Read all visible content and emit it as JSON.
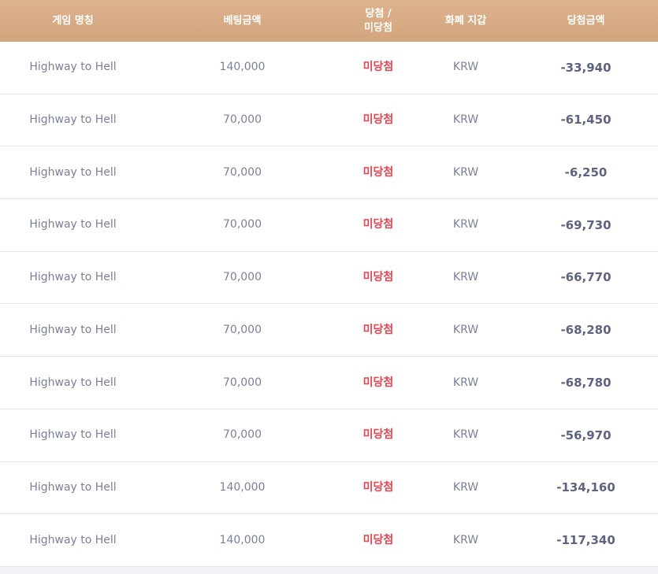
{
  "table": {
    "header": [
      "게임 명칭",
      "베팅금액",
      "당첨 /\n미당첨",
      "화폐 지갑",
      "당첨금액"
    ],
    "rows": [
      [
        "Highway to Hell",
        "140,000",
        "미당첨",
        "KRW",
        "-33,940"
      ],
      [
        "Highway to Hell",
        "70,000",
        "미당첨",
        "KRW",
        "-61,450"
      ],
      [
        "Highway to Hell",
        "70,000",
        "미당첨",
        "KRW",
        "-6,250"
      ],
      [
        "Highway to Hell",
        "70,000",
        "미당첨",
        "KRW",
        "-69,730"
      ],
      [
        "Highway to Hell",
        "70,000",
        "미당첨",
        "KRW",
        "-66,770"
      ],
      [
        "Highway to Hell",
        "70,000",
        "미당첨",
        "KRW",
        "-68,280"
      ],
      [
        "Highway to Hell",
        "70,000",
        "미당첨",
        "KRW",
        "-68,780"
      ],
      [
        "Highway to Hell",
        "70,000",
        "미당첨",
        "KRW",
        "-56,970"
      ],
      [
        "Highway to Hell",
        "140,000",
        "미당첨",
        "KRW",
        "-134,160"
      ],
      [
        "Highway to Hell",
        "140,000",
        "미당첨",
        "KRW",
        "-117,340"
      ]
    ]
  }
}
